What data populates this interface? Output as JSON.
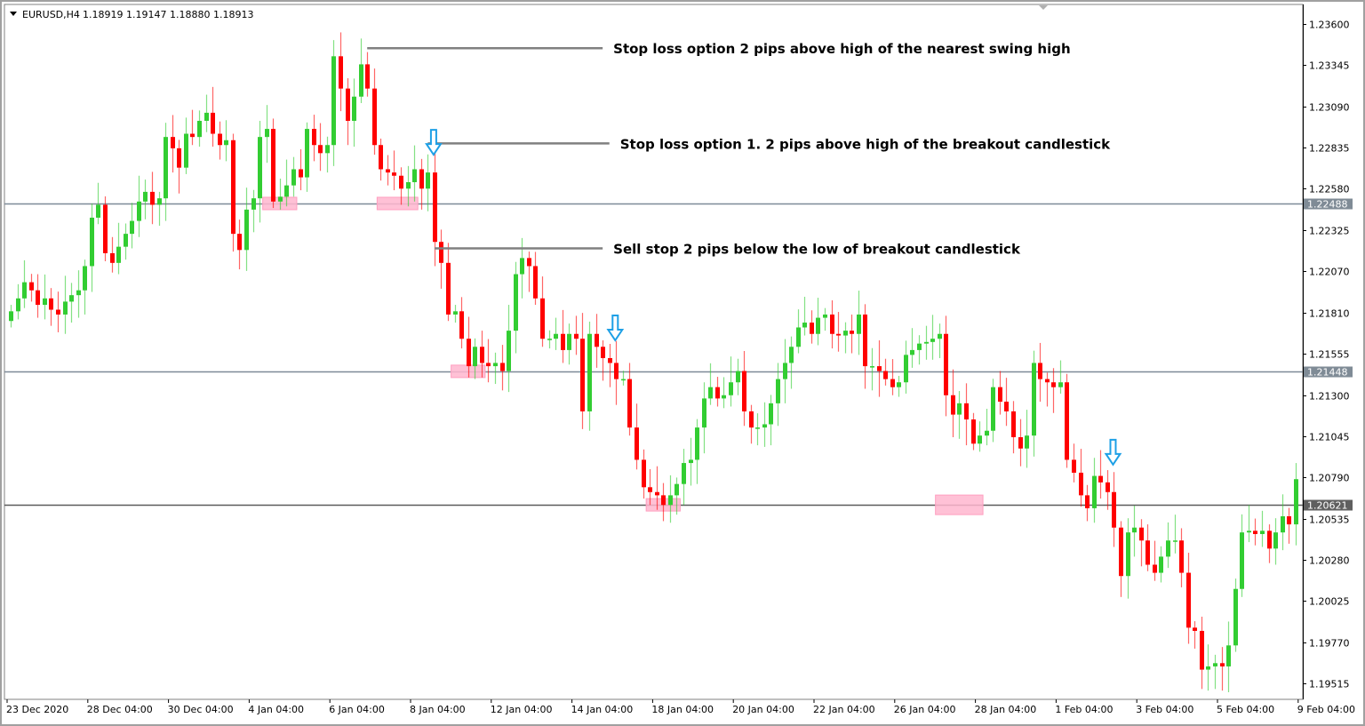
{
  "header": {
    "symbol": "EURUSD,H4",
    "ohlc": "1.18919 1.19147 1.18880 1.18913"
  },
  "colors": {
    "bull": "#32cd32",
    "bear": "#ff0000",
    "level_line": "#7d8a97",
    "last_level_line": "#5a5a5a",
    "zone": "#ffb6cf",
    "arrow": "#1ea0e6",
    "annotation_line": "#808080"
  },
  "chart_data": {
    "type": "candlestick",
    "title": "",
    "ylim": [
      1.19515,
      1.236
    ],
    "grid": false,
    "y_ticks": [
      "1.23600",
      "1.23345",
      "1.23090",
      "1.22835",
      "1.22580",
      "1.22325",
      "1.22070",
      "1.21810",
      "1.21555",
      "1.21300",
      "1.21045",
      "1.20790",
      "1.20535",
      "1.20280",
      "1.20025",
      "1.19770",
      "1.19515"
    ],
    "x_ticks": [
      "23 Dec 2020",
      "28 Dec 04:00",
      "30 Dec 04:00",
      "4 Jan 04:00",
      "6 Jan 04:00",
      "8 Jan 04:00",
      "12 Jan 04:00",
      "14 Jan 04:00",
      "18 Jan 04:00",
      "20 Jan 04:00",
      "22 Jan 04:00",
      "26 Jan 04:00",
      "28 Jan 04:00",
      "1 Feb 04:00",
      "3 Feb 04:00",
      "5 Feb 04:00",
      "9 Feb 04:00"
    ],
    "first_open": 1.2176,
    "closes": [
      1.2182,
      1.219,
      1.22,
      1.2195,
      1.2186,
      1.219,
      1.2183,
      1.218,
      1.2188,
      1.2192,
      1.2195,
      1.221,
      1.224,
      1.2248,
      1.2218,
      1.2212,
      1.2222,
      1.223,
      1.2238,
      1.225,
      1.2256,
      1.2248,
      1.2252,
      1.229,
      1.2283,
      1.2271,
      1.2292,
      1.229,
      1.23,
      1.2305,
      1.2292,
      1.2285,
      1.2288,
      1.223,
      1.222,
      1.2245,
      1.2252,
      1.229,
      1.2295,
      1.225,
      1.2253,
      1.226,
      1.227,
      1.2265,
      1.2295,
      1.2285,
      1.228,
      1.2285,
      1.234,
      1.232,
      1.23,
      1.2315,
      1.2335,
      1.232,
      1.2285,
      1.227,
      1.2268,
      1.2266,
      1.2258,
      1.2262,
      1.227,
      1.2258,
      1.2268,
      1.2225,
      1.2212,
      1.218,
      1.2182,
      1.2165,
      1.2148,
      1.216,
      1.215,
      1.2148,
      1.215,
      1.2145,
      1.217,
      1.2205,
      1.2215,
      1.221,
      1.219,
      1.2165,
      1.2165,
      1.2168,
      1.2158,
      1.2168,
      1.2165,
      1.212,
      1.2168,
      1.216,
      1.2153,
      1.215,
      1.214,
      1.214,
      1.211,
      1.209,
      1.2073,
      1.207,
      1.2068,
      1.2062,
      1.2068,
      1.2075,
      1.2088,
      1.209,
      1.211,
      1.2128,
      1.2135,
      1.2128,
      1.213,
      1.2138,
      1.2145,
      1.212,
      1.211,
      1.211,
      1.2112,
      1.2125,
      1.214,
      1.215,
      1.216,
      1.2172,
      1.2175,
      1.2168,
      1.2178,
      1.218,
      1.2168,
      1.2167,
      1.217,
      1.2168,
      1.218,
      1.2148,
      1.2148,
      1.2145,
      1.214,
      1.2135,
      1.2138,
      1.2155,
      1.2158,
      1.2162,
      1.2163,
      1.2165,
      1.2168,
      1.213,
      1.2118,
      1.2125,
      1.2115,
      1.21,
      1.2105,
      1.2108,
      1.2135,
      1.2126,
      1.212,
      1.2104,
      1.2097,
      1.2105,
      1.215,
      1.214,
      1.2138,
      1.2135,
      1.2138,
      1.209,
      1.2082,
      1.2068,
      1.206,
      1.208,
      1.2076,
      1.207,
      1.2048,
      1.2018,
      1.2045,
      1.2048,
      1.204,
      1.2025,
      1.202,
      1.203,
      1.204,
      1.204,
      1.202,
      1.1986,
      1.1984,
      1.196,
      1.1962,
      1.1964,
      1.1962,
      1.1975,
      1.201,
      1.2045,
      1.2046,
      1.2044,
      1.2046,
      1.2035,
      1.2045,
      1.2055,
      1.205,
      1.2078
    ],
    "levels": [
      {
        "price": 1.22488,
        "label": "1.22488"
      },
      {
        "price": 1.21448,
        "label": "1.21448"
      },
      {
        "price": 1.20621,
        "label": "1.20621"
      }
    ],
    "annotations": [
      {
        "text": "Stop loss option 2 pips above high of the nearest swing high",
        "price": 1.2345,
        "from_bar": 53,
        "to_bar": 88
      },
      {
        "text": "Stop loss option 1. 2 pips above high of the breakout candlestick",
        "price": 1.2286,
        "from_bar": 62,
        "to_bar": 89
      },
      {
        "text": "Sell stop 2 pips below the low of breakout candlestick",
        "price": 1.2221,
        "from_bar": 63,
        "to_bar": 88
      }
    ],
    "signal_arrows": [
      {
        "bar": 63,
        "direction": "down"
      },
      {
        "bar": 90,
        "direction": "down"
      },
      {
        "bar": 164,
        "direction": "down"
      }
    ],
    "zones": [
      {
        "from_bar": 38,
        "to_bar": 42,
        "price": 1.22488
      },
      {
        "from_bar": 55,
        "to_bar": 60,
        "price": 1.22488
      },
      {
        "from_bar": 66,
        "to_bar": 70,
        "price": 1.21448
      },
      {
        "from_bar": 95,
        "to_bar": 99,
        "price": 1.20621
      },
      {
        "from_bar": 138,
        "to_bar": 144,
        "price": 1.20621
      }
    ]
  }
}
